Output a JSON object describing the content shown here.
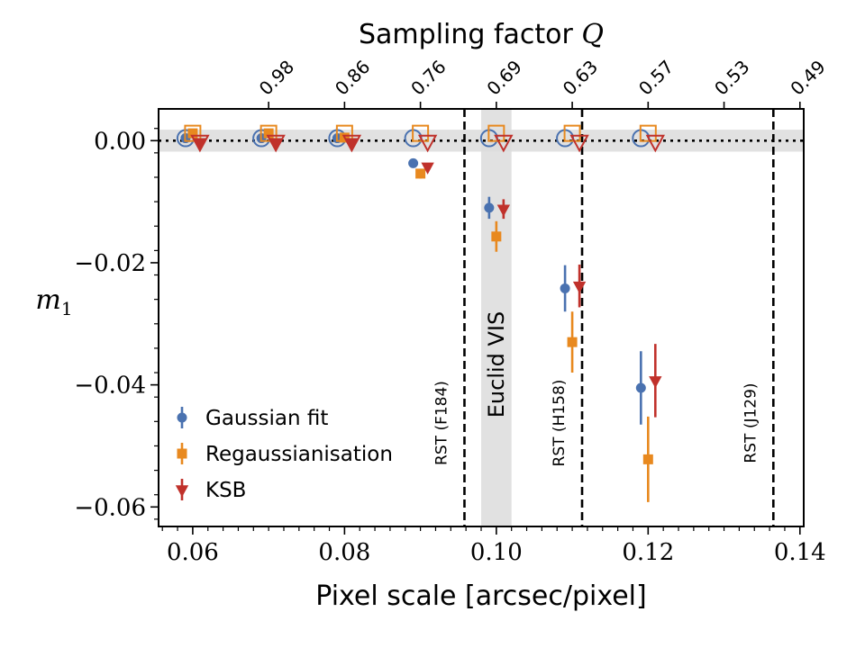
{
  "chart_data": {
    "type": "scatter",
    "xlabel": "Pixel scale [arcsec/pixel]",
    "ylabel": "m_1",
    "top_xlabel": "Sampling factor Q",
    "xlim": [
      0.0555,
      0.1405
    ],
    "ylim": [
      -0.0632,
      0.0052
    ],
    "x_ticks": [
      0.06,
      0.08,
      0.1,
      0.12,
      0.14
    ],
    "x_tick_labels": [
      "0.06",
      "0.08",
      "0.10",
      "0.12",
      "0.14"
    ],
    "y_ticks": [
      0.0,
      -0.02,
      -0.04,
      -0.06
    ],
    "y_tick_labels": [
      "0.00",
      "−0.02",
      "−0.04",
      "−0.06"
    ],
    "top_ticks": [
      {
        "x": 0.07,
        "label": "0.98"
      },
      {
        "x": 0.08,
        "label": "0.86"
      },
      {
        "x": 0.09,
        "label": "0.76"
      },
      {
        "x": 0.1,
        "label": "0.69"
      },
      {
        "x": 0.11,
        "label": "0.63"
      },
      {
        "x": 0.12,
        "label": "0.57"
      },
      {
        "x": 0.13,
        "label": "0.53"
      },
      {
        "x": 0.14,
        "label": "0.49"
      }
    ],
    "zero_band": [
      -0.0018,
      0.0018
    ],
    "euclid_band": {
      "x": [
        0.098,
        0.102
      ],
      "label": "Euclid VIS"
    },
    "vlines": [
      {
        "x": 0.0958,
        "label": "RST (F184)"
      },
      {
        "x": 0.1113,
        "label": "RST (H158)"
      },
      {
        "x": 0.1365,
        "label": "RST (J129)"
      }
    ],
    "legend_position": "lower-left",
    "series": [
      {
        "name": "Gaussian fit",
        "color": "#4a72b0",
        "marker": "circle",
        "x": [
          0.06,
          0.07,
          0.08,
          0.09,
          0.1,
          0.11,
          0.12
        ],
        "y": [
          0.0004,
          0.0004,
          0.0004,
          -0.0037,
          -0.011,
          -0.0242,
          -0.0405
        ],
        "yerr": [
          0.0003,
          0.0003,
          0.0003,
          0.0005,
          0.0018,
          0.0038,
          0.006
        ],
        "open_markers_y": [
          0.0004,
          0.0004,
          0.0004,
          0.0004,
          0.0004,
          0.0004,
          0.0004
        ]
      },
      {
        "name": "Regaussianisation",
        "color": "#e8891f",
        "marker": "square",
        "x": [
          0.06,
          0.07,
          0.08,
          0.09,
          0.1,
          0.11,
          0.12
        ],
        "y": [
          0.0012,
          0.0012,
          0.0005,
          -0.0054,
          -0.0157,
          -0.033,
          -0.0522
        ],
        "yerr": [
          0.0003,
          0.0003,
          0.0003,
          0.0008,
          0.0025,
          0.005,
          0.007
        ],
        "open_markers_y": [
          0.0012,
          0.0012,
          0.0012,
          0.0012,
          0.0012,
          0.0012,
          0.0012
        ]
      },
      {
        "name": "KSB",
        "color": "#c0312b",
        "marker": "triangle-down",
        "x": [
          0.06,
          0.07,
          0.08,
          0.09,
          0.1,
          0.11,
          0.12
        ],
        "y": [
          -0.0003,
          -0.0003,
          -0.0003,
          -0.0043,
          -0.0112,
          -0.0238,
          -0.0393
        ],
        "yerr": [
          0.0003,
          0.0003,
          0.0003,
          0.0006,
          0.0016,
          0.0035,
          0.006
        ],
        "open_markers_y": [
          -0.0001,
          -0.0001,
          -0.0001,
          -0.0001,
          -0.0001,
          -0.0001,
          -0.0001
        ]
      }
    ]
  }
}
